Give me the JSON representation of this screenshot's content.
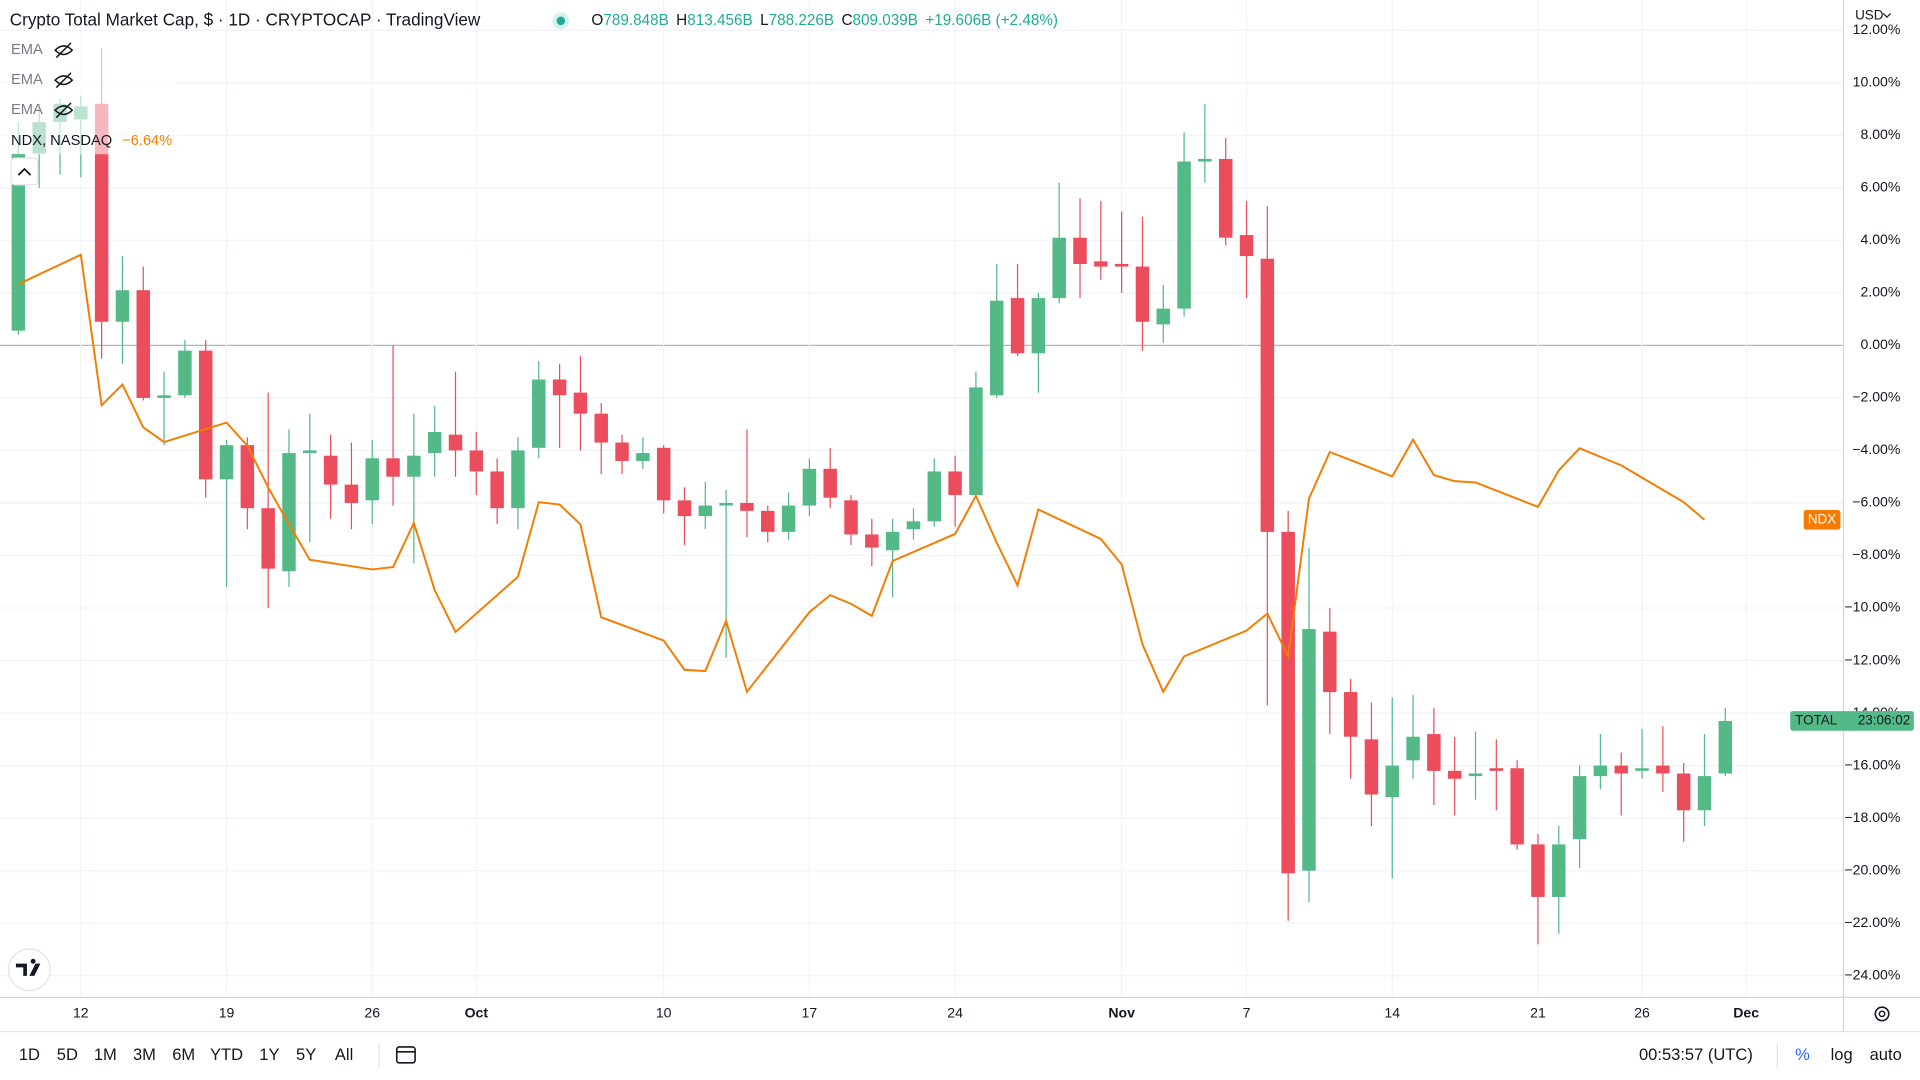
{
  "header": {
    "title": "Crypto Total Market Cap, $ · 1D · CRYPTOCAP · TradingView",
    "ohlc": [
      {
        "key": "O",
        "value": "789.848B"
      },
      {
        "key": "H",
        "value": "813.456B"
      },
      {
        "key": "L",
        "value": "788.226B"
      },
      {
        "key": "C",
        "value": "809.039B"
      }
    ],
    "change": "+19.606B (+2.48%)"
  },
  "legend": {
    "indicators": [
      "EMA",
      "EMA",
      "EMA"
    ],
    "overlay": {
      "label": "NDX, NASDAQ",
      "change": "−6.64%"
    }
  },
  "chart_data": {
    "type": "candlestick",
    "categories": [
      "Sep 9",
      "Sep 10",
      "Sep 11",
      "Sep 12",
      "Sep 13",
      "Sep 14",
      "Sep 15",
      "Sep 16",
      "Sep 17",
      "Sep 18",
      "Sep 19",
      "Sep 20",
      "Sep 21",
      "Sep 22",
      "Sep 23",
      "Sep 24",
      "Sep 25",
      "Sep 26",
      "Sep 27",
      "Sep 28",
      "Sep 29",
      "Sep 30",
      "Oct 1",
      "Oct 2",
      "Oct 3",
      "Oct 4",
      "Oct 5",
      "Oct 6",
      "Oct 7",
      "Oct 8",
      "Oct 9",
      "Oct 10",
      "Oct 11",
      "Oct 12",
      "Oct 13",
      "Oct 14",
      "Oct 15",
      "Oct 16",
      "Oct 17",
      "Oct 18",
      "Oct 19",
      "Oct 20",
      "Oct 21",
      "Oct 22",
      "Oct 23",
      "Oct 24",
      "Oct 25",
      "Oct 26",
      "Oct 27",
      "Oct 28",
      "Oct 29",
      "Oct 30",
      "Oct 31",
      "Nov 1",
      "Nov 2",
      "Nov 3",
      "Nov 4",
      "Nov 5",
      "Nov 6",
      "Nov 7",
      "Nov 8",
      "Nov 9",
      "Nov 10",
      "Nov 11",
      "Nov 12",
      "Nov 13",
      "Nov 14",
      "Nov 15",
      "Nov 16",
      "Nov 17",
      "Nov 18",
      "Nov 19",
      "Nov 20",
      "Nov 21",
      "Nov 22",
      "Nov 23",
      "Nov 24",
      "Nov 25",
      "Nov 26",
      "Nov 27",
      "Nov 28",
      "Nov 29",
      "Nov 30"
    ],
    "series": [
      {
        "name": "TOTAL",
        "type": "candlestick",
        "up_color": "#53b987",
        "down_color": "#eb4d5c",
        "countdown": "23:06:02",
        "open": [
          0.56,
          7.3,
          8.5,
          8.6,
          9.2,
          0.9,
          2.1,
          -2.0,
          -1.9,
          -0.2,
          -5.1,
          -3.8,
          -6.2,
          -8.6,
          -4.1,
          -4.2,
          -5.3,
          -5.9,
          -4.3,
          -5.0,
          -4.1,
          -3.4,
          -4.0,
          -4.8,
          -6.2,
          -3.9,
          -1.3,
          -1.8,
          -2.6,
          -3.7,
          -4.4,
          -3.9,
          -5.9,
          -6.5,
          -6.1,
          -6.0,
          -6.3,
          -7.1,
          -6.1,
          -4.7,
          -5.9,
          -7.2,
          -7.8,
          -7.0,
          -6.7,
          -4.8,
          -5.7,
          -1.9,
          1.8,
          -0.3,
          1.8,
          4.1,
          3.2,
          3.1,
          3.0,
          0.8,
          1.4,
          7.0,
          7.1,
          4.2,
          3.3,
          -7.1,
          -20.0,
          -10.9,
          -13.2,
          -15.0,
          -17.2,
          -15.8,
          -14.8,
          -16.2,
          -16.4,
          -16.1,
          -16.1,
          -19.0,
          -21.0,
          -18.8,
          -16.4,
          -16.0,
          -16.2,
          -16.0,
          -16.3,
          -17.7,
          -16.3
        ],
        "high": [
          8.5,
          9.2,
          9.4,
          9.5,
          11.3,
          3.4,
          3.0,
          -1.0,
          0.2,
          0.2,
          -3.6,
          -3.5,
          -1.8,
          -3.2,
          -2.6,
          -3.4,
          -3.7,
          -3.6,
          0.0,
          -2.6,
          -2.3,
          -1.0,
          -3.3,
          -4.3,
          -3.5,
          -0.6,
          -0.7,
          -0.4,
          -2.2,
          -3.4,
          -3.5,
          -3.8,
          -5.4,
          -5.2,
          -5.5,
          -3.2,
          -6.1,
          -5.6,
          -4.3,
          -3.9,
          -5.7,
          -6.6,
          -6.6,
          -6.2,
          -4.3,
          -4.2,
          -1.0,
          3.1,
          3.1,
          2.0,
          6.2,
          5.6,
          5.5,
          5.1,
          4.9,
          2.3,
          8.1,
          9.2,
          7.9,
          5.5,
          5.3,
          -6.3,
          -7.7,
          -10.0,
          -12.7,
          -13.6,
          -13.4,
          -13.3,
          -13.8,
          -14.9,
          -14.7,
          -15.0,
          -15.8,
          -18.6,
          -18.3,
          -16.0,
          -14.8,
          -15.5,
          -14.6,
          -14.5,
          -15.9,
          -14.8,
          -13.8
        ],
        "low": [
          0.4,
          6.0,
          6.5,
          6.4,
          -0.5,
          -0.7,
          -2.1,
          -3.8,
          -2.0,
          -5.8,
          -9.2,
          -7.0,
          -10.0,
          -9.2,
          -7.5,
          -6.6,
          -7.0,
          -6.8,
          -6.1,
          -8.3,
          -5.0,
          -5.0,
          -5.7,
          -6.8,
          -7.0,
          -4.3,
          -3.9,
          -4.0,
          -4.9,
          -4.9,
          -4.7,
          -6.4,
          -7.6,
          -7.0,
          -11.9,
          -7.3,
          -7.5,
          -7.4,
          -6.5,
          -6.2,
          -7.6,
          -8.4,
          -9.6,
          -7.4,
          -6.9,
          -6.9,
          -5.8,
          -2.0,
          -0.4,
          -1.8,
          1.6,
          1.8,
          2.5,
          2.0,
          -0.2,
          0.1,
          1.1,
          6.2,
          3.8,
          1.8,
          -13.7,
          -21.9,
          -21.2,
          -14.8,
          -16.5,
          -18.3,
          -20.3,
          -16.5,
          -17.5,
          -17.9,
          -17.3,
          -17.7,
          -19.2,
          -22.8,
          -22.4,
          -19.9,
          -16.9,
          -17.9,
          -16.5,
          -17.0,
          -18.9,
          -18.3,
          -16.4
        ],
        "close": [
          7.3,
          8.5,
          9.2,
          9.1,
          0.9,
          2.1,
          -2.0,
          -1.9,
          -0.2,
          -5.1,
          -3.8,
          -6.2,
          -8.5,
          -4.1,
          -4.0,
          -5.3,
          -6.0,
          -4.3,
          -5.0,
          -4.2,
          -3.3,
          -4.0,
          -4.8,
          -6.2,
          -4.0,
          -1.3,
          -1.9,
          -2.6,
          -3.7,
          -4.4,
          -4.1,
          -5.9,
          -6.5,
          -6.1,
          -6.0,
          -6.3,
          -7.1,
          -6.1,
          -4.7,
          -5.8,
          -7.2,
          -7.7,
          -7.1,
          -6.7,
          -4.8,
          -5.7,
          -1.6,
          1.7,
          -0.3,
          1.8,
          4.1,
          3.1,
          3.0,
          3.0,
          0.9,
          1.4,
          7.0,
          7.1,
          4.1,
          3.4,
          -7.1,
          -20.1,
          -10.8,
          -13.2,
          -14.9,
          -17.1,
          -16.0,
          -14.9,
          -16.2,
          -16.5,
          -16.3,
          -16.2,
          -19.0,
          -21.0,
          -19.0,
          -16.4,
          -16.0,
          -16.3,
          -16.1,
          -16.3,
          -17.7,
          -16.4,
          -14.3
        ]
      },
      {
        "name": "NDX",
        "type": "line",
        "color": "#f57c00",
        "x": [
          "Sep 9",
          "Sep 12",
          "Sep 13",
          "Sep 14",
          "Sep 15",
          "Sep 16",
          "Sep 19",
          "Sep 20",
          "Sep 21",
          "Sep 22",
          "Sep 23",
          "Sep 26",
          "Sep 27",
          "Sep 28",
          "Sep 29",
          "Sep 30",
          "Oct 3",
          "Oct 4",
          "Oct 5",
          "Oct 6",
          "Oct 7",
          "Oct 10",
          "Oct 11",
          "Oct 12",
          "Oct 13",
          "Oct 14",
          "Oct 17",
          "Oct 18",
          "Oct 19",
          "Oct 20",
          "Oct 21",
          "Oct 24",
          "Oct 25",
          "Oct 26",
          "Oct 27",
          "Oct 28",
          "Oct 31",
          "Nov 1",
          "Nov 2",
          "Nov 3",
          "Nov 4",
          "Nov 7",
          "Nov 8",
          "Nov 9",
          "Nov 10",
          "Nov 11",
          "Nov 14",
          "Nov 15",
          "Nov 16",
          "Nov 17",
          "Nov 18",
          "Nov 21",
          "Nov 22",
          "Nov 23",
          "Nov 25",
          "Nov 28",
          "Nov 29"
        ],
        "values": [
          2.33,
          3.45,
          -2.28,
          -1.49,
          -3.12,
          -3.68,
          -2.94,
          -3.82,
          -5.41,
          -6.81,
          -8.16,
          -8.53,
          -8.44,
          -6.76,
          -9.32,
          -10.91,
          -8.81,
          -5.97,
          -6.06,
          -6.81,
          -10.35,
          -11.24,
          -12.35,
          -12.4,
          -10.49,
          -13.19,
          -10.16,
          -9.51,
          -9.84,
          -10.3,
          -8.21,
          -7.18,
          -5.73,
          -7.51,
          -9.14,
          -6.25,
          -7.37,
          -8.34,
          -11.38,
          -13.19,
          -11.84,
          -10.86,
          -10.21,
          -11.84,
          -5.83,
          -4.06,
          -4.99,
          -3.59,
          -4.94,
          -5.17,
          -5.22,
          -6.15,
          -4.76,
          -3.92,
          -4.57,
          -5.97,
          -6.64
        ]
      }
    ],
    "currency": "USD",
    "ylim": [
      -24.8,
      13.15
    ],
    "yticks": [
      {
        "value": 12,
        "label": "12.00%"
      },
      {
        "value": 10,
        "label": "10.00%"
      },
      {
        "value": 8,
        "label": "8.00%"
      },
      {
        "value": 6,
        "label": "6.00%"
      },
      {
        "value": 4,
        "label": "4.00%"
      },
      {
        "value": 2,
        "label": "2.00%"
      },
      {
        "value": 0,
        "label": "0.00%"
      },
      {
        "value": -2,
        "label": "−2.00%"
      },
      {
        "value": -4,
        "label": "−4.00%"
      },
      {
        "value": -6,
        "label": "−6.00%"
      },
      {
        "value": -8,
        "label": "−8.00%"
      },
      {
        "value": -10,
        "label": "−10.00%"
      },
      {
        "value": -12,
        "label": "−12.00%"
      },
      {
        "value": -14,
        "label": "−14.00%"
      },
      {
        "value": -16,
        "label": "−16.00%"
      },
      {
        "value": -18,
        "label": "−18.00%"
      },
      {
        "value": -20,
        "label": "−20.00%"
      },
      {
        "value": -22,
        "label": "−22.00%"
      },
      {
        "value": -24,
        "label": "−24.00%"
      }
    ],
    "xticks": [
      {
        "value": "Sep 12",
        "label": "12"
      },
      {
        "value": "Sep 19",
        "label": "19"
      },
      {
        "value": "Sep 26",
        "label": "26"
      },
      {
        "value": "Oct 1",
        "label": "Oct"
      },
      {
        "value": "Oct 10",
        "label": "10"
      },
      {
        "value": "Oct 17",
        "label": "17"
      },
      {
        "value": "Oct 24",
        "label": "24"
      },
      {
        "value": "Nov 1",
        "label": "Nov"
      },
      {
        "value": "Nov 7",
        "label": "7"
      },
      {
        "value": "Nov 14",
        "label": "14"
      },
      {
        "value": "Nov 21",
        "label": "21"
      },
      {
        "value": "Nov 26",
        "label": "26"
      },
      {
        "value": "Dec 1",
        "label": "Dec"
      }
    ],
    "grid": true
  },
  "toolbar": {
    "ranges": [
      "1D",
      "5D",
      "1M",
      "3M",
      "6M",
      "YTD",
      "1Y",
      "5Y",
      "All"
    ],
    "clock": "00:53:57 (UTC)",
    "options": [
      "%",
      "log",
      "auto"
    ]
  }
}
